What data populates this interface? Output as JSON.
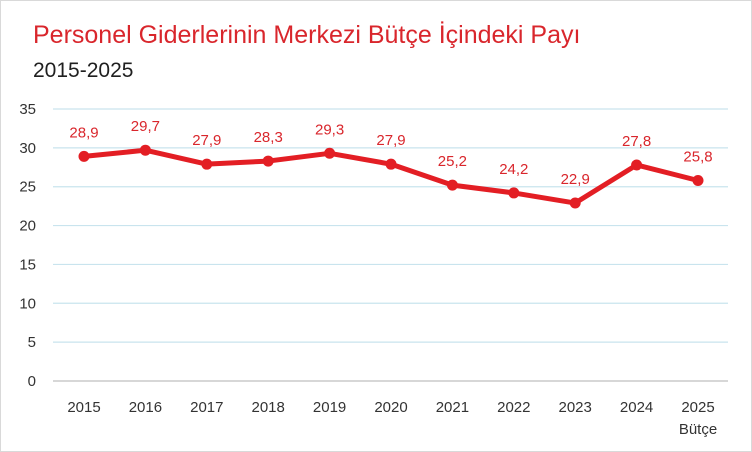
{
  "chart_data": {
    "type": "line",
    "title": "Personel Giderlerinin Merkezi Bütçe İçindeki Payı",
    "subtitle": "2015-2025",
    "categories": [
      "2015",
      "2016",
      "2017",
      "2018",
      "2019",
      "2020",
      "2021",
      "2022",
      "2023",
      "2024",
      "2025"
    ],
    "category_sublabels": [
      "",
      "",
      "",
      "",
      "",
      "",
      "",
      "",
      "",
      "",
      "Bütçe"
    ],
    "series": [
      {
        "values": [
          28.9,
          29.7,
          27.9,
          28.3,
          29.3,
          27.9,
          25.2,
          24.2,
          22.9,
          27.8,
          25.8
        ],
        "value_labels": [
          "28,9",
          "29,7",
          "27,9",
          "28,3",
          "29,3",
          "27,9",
          "25,2",
          "24,2",
          "22,9",
          "27,8",
          "25,8"
        ],
        "color": "#e31e24"
      }
    ],
    "ylim": [
      0,
      35
    ],
    "yticks": [
      0,
      5,
      10,
      15,
      20,
      25,
      30,
      35
    ],
    "grid": true,
    "legend": "none",
    "label_color": "#d9262c",
    "grid_color": "#c9e4ee"
  }
}
